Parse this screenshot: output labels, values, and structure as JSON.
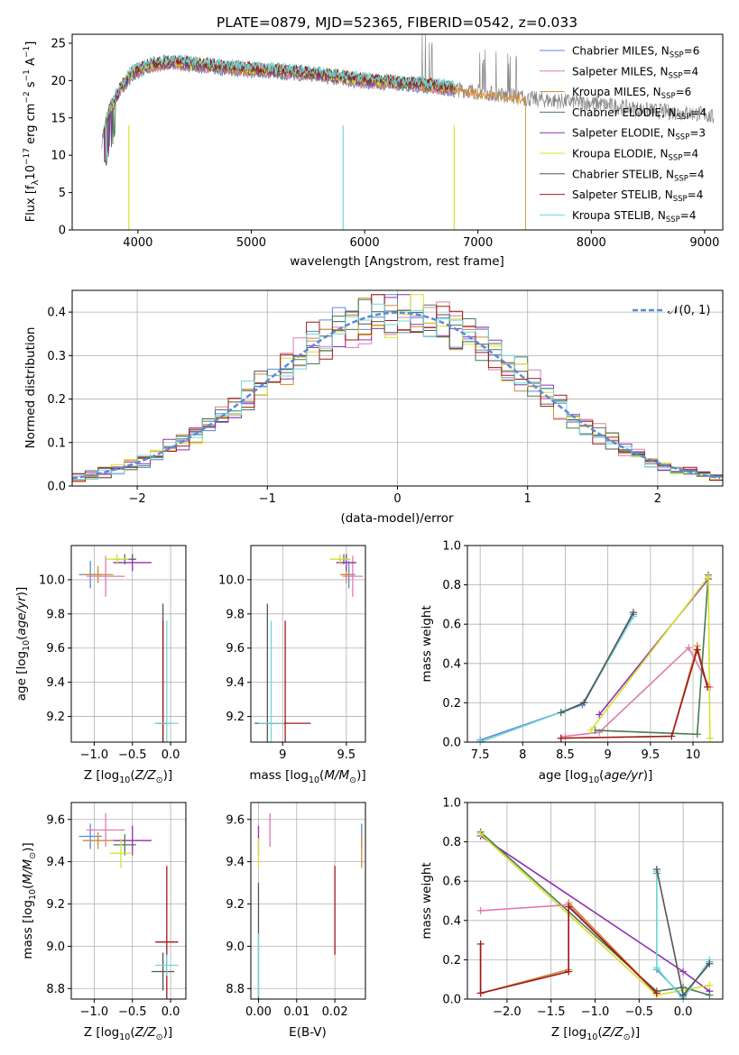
{
  "figure": {
    "title": "PLATE=0879, MJD=52365, FIBERID=0542, z=0.033"
  },
  "chart_data": [
    {
      "id": "spectrum",
      "type": "line",
      "xlabel": "wavelength [Angstrom, rest frame]",
      "ylabel": "Flux [f_λ10^-17 erg cm^-2 s^-1 A^-1]",
      "xlim": [
        3420,
        9160
      ],
      "ylim": [
        0,
        26.2
      ],
      "xticks": [
        4000,
        5000,
        6000,
        7000,
        8000,
        9000
      ],
      "yticks": [
        0,
        5,
        10,
        15,
        20,
        25
      ],
      "grid": false,
      "legend_position": "top-right",
      "series": [
        {
          "name": "Chabrier MILES, N_SSP=6",
          "color": "#5b8bd4",
          "range": [
            3700,
            6800
          ]
        },
        {
          "name": "Salpeter MILES, N_SSP=4",
          "color": "#e07ab0",
          "range": [
            3700,
            6800
          ]
        },
        {
          "name": "Kroupa MILES, N_SSP=6",
          "color": "#d08a3a",
          "range": [
            3700,
            7420
          ]
        },
        {
          "name": "Chabrier ELODIE, N_SSP=4",
          "color": "#4a7a52",
          "range": [
            3700,
            6800
          ]
        },
        {
          "name": "Salpeter ELODIE, N_SSP=3",
          "color": "#9030b0",
          "range": [
            3700,
            6800
          ]
        },
        {
          "name": "Kroupa ELODIE, N_SSP=4",
          "color": "#d8e030",
          "range": [
            3700,
            6800
          ]
        },
        {
          "name": "Chabrier STELIB, N_SSP=4",
          "color": "#555555",
          "range": [
            3700,
            6800
          ]
        },
        {
          "name": "Salpeter STELIB, N_SSP=4",
          "color": "#a01818",
          "range": [
            3700,
            6800
          ]
        },
        {
          "name": "Kroupa STELIB, N_SSP=4",
          "color": "#70d8d8",
          "range": [
            3700,
            6800
          ]
        }
      ],
      "data_color": "#888888",
      "continuum": [
        [
          3680,
          12
        ],
        [
          3750,
          16
        ],
        [
          3850,
          19
        ],
        [
          3950,
          21
        ],
        [
          4100,
          22
        ],
        [
          4300,
          22.5
        ],
        [
          4600,
          22
        ],
        [
          5000,
          21.5
        ],
        [
          5500,
          21
        ],
        [
          6000,
          20
        ],
        [
          6500,
          19.5
        ],
        [
          7000,
          18.5
        ],
        [
          7500,
          17.5
        ],
        [
          8000,
          17
        ],
        [
          8500,
          16
        ],
        [
          9000,
          15.5
        ],
        [
          9080,
          15
        ]
      ],
      "marker_lines": [
        3920,
        5810,
        6790
      ],
      "kroupa_miles_drop": 7420
    },
    {
      "id": "residuals",
      "type": "line",
      "xlabel": "(data-model)/error",
      "ylabel": "Normed distribution",
      "xlim": [
        -2.5,
        2.5
      ],
      "ylim": [
        0,
        0.45
      ],
      "xticks": [
        -2,
        -1,
        0,
        1,
        2
      ],
      "xtick_labels": [
        "−2",
        "−1",
        "0",
        "1",
        "2"
      ],
      "yticks": [
        0,
        0.1,
        0.2,
        0.3,
        0.4
      ],
      "grid": true,
      "legend_position": "top-right",
      "reference": {
        "label": "𝒩(0, 1)",
        "color": "#5b8bd4",
        "mean": 0,
        "sigma": 1
      },
      "bin_width": 0.1
    },
    {
      "id": "age-vs-Z",
      "type": "scatter",
      "xlabel": "Z [log10(Z/Z⊙)]",
      "ylabel": "age  [log10(age/yr)]",
      "xlim": [
        -1.3,
        0.2
      ],
      "ylim": [
        9.05,
        10.2
      ],
      "xticks": [
        -1.0,
        -0.5,
        0.0
      ],
      "xtick_labels": [
        "−1.0",
        "−0.5",
        "0.0"
      ],
      "yticks": [
        9.2,
        9.4,
        9.6,
        9.8,
        10.0
      ],
      "grid": true,
      "points": [
        {
          "color": "#5b8bd4",
          "x": -1.05,
          "y": 10.03,
          "ex": 0.15,
          "ey": 0.08
        },
        {
          "color": "#e07ab0",
          "x": -0.85,
          "y": 10.02,
          "ex": 0.25,
          "ey": 0.12
        },
        {
          "color": "#d08a3a",
          "x": -0.95,
          "y": 10.03,
          "ex": 0.2,
          "ey": 0.05
        },
        {
          "color": "#4a7a52",
          "x": -0.6,
          "y": 10.12,
          "ex": 0.15,
          "ey": 0.03
        },
        {
          "color": "#9030b0",
          "x": -0.5,
          "y": 10.1,
          "ex": 0.25,
          "ey": 0.05
        },
        {
          "color": "#d8e030",
          "x": -0.7,
          "y": 10.12,
          "ex": 0.15,
          "ey": 0.03
        },
        {
          "color": "#555555",
          "x": -0.1,
          "y": 9.16,
          "ex": 0.05,
          "ey": 0.7
        },
        {
          "color": "#a01818",
          "x": -0.1,
          "y": 9.16,
          "ex": 0.1,
          "ey": 0.6
        },
        {
          "color": "#70d8d8",
          "x": -0.05,
          "y": 9.16,
          "ex": 0.15,
          "ey": 0.6
        }
      ]
    },
    {
      "id": "age-vs-mass",
      "type": "scatter",
      "xlabel": "mass [log10(M/M⊙)]",
      "ylabel": "",
      "xlim": [
        8.75,
        9.65
      ],
      "ylim": [
        9.05,
        10.2
      ],
      "xticks": [
        9.0,
        9.5
      ],
      "yticks": [
        9.2,
        9.4,
        9.6,
        9.8,
        10.0
      ],
      "grid": true,
      "points": [
        {
          "color": "#5b8bd4",
          "x": 9.52,
          "y": 10.03,
          "ex": 0.05,
          "ey": 0.08
        },
        {
          "color": "#e07ab0",
          "x": 9.55,
          "y": 10.02,
          "ex": 0.08,
          "ey": 0.12
        },
        {
          "color": "#d08a3a",
          "x": 9.5,
          "y": 10.03,
          "ex": 0.05,
          "ey": 0.05
        },
        {
          "color": "#4a7a52",
          "x": 9.48,
          "y": 10.12,
          "ex": 0.05,
          "ey": 0.03
        },
        {
          "color": "#9030b0",
          "x": 9.5,
          "y": 10.1,
          "ex": 0.08,
          "ey": 0.05
        },
        {
          "color": "#d8e030",
          "x": 9.45,
          "y": 10.12,
          "ex": 0.08,
          "ey": 0.03
        },
        {
          "color": "#555555",
          "x": 8.88,
          "y": 9.16,
          "ex": 0.1,
          "ey": 0.7
        },
        {
          "color": "#a01818",
          "x": 9.02,
          "y": 9.16,
          "ex": 0.2,
          "ey": 0.6
        },
        {
          "color": "#70d8d8",
          "x": 8.91,
          "y": 9.16,
          "ex": 0.1,
          "ey": 0.6
        }
      ]
    },
    {
      "id": "weight-vs-age",
      "type": "line",
      "xlabel": "age  [log10(age/yr)]",
      "ylabel": "mass weight",
      "xlim": [
        7.35,
        10.35
      ],
      "ylim": [
        0,
        1.0
      ],
      "xticks": [
        7.5,
        8.0,
        8.5,
        9.0,
        9.5,
        10.0
      ],
      "yticks": [
        0.0,
        0.2,
        0.4,
        0.6,
        0.8,
        1.0
      ],
      "grid": true,
      "series": [
        {
          "color": "#5b8bd4",
          "x": [
            7.5,
            8.5,
            8.7,
            9.3
          ],
          "y": [
            0.01,
            0.16,
            0.19,
            0.65
          ]
        },
        {
          "color": "#70d8d8",
          "x": [
            7.5,
            8.5,
            8.72,
            9.3
          ],
          "y": [
            0.0,
            0.16,
            0.2,
            0.64
          ]
        },
        {
          "color": "#555555",
          "x": [
            8.45,
            8.72,
            9.3
          ],
          "y": [
            0.15,
            0.2,
            0.66
          ]
        },
        {
          "color": "#d08a3a",
          "x": [
            8.45,
            9.75,
            10.05,
            10.17
          ],
          "y": [
            0.02,
            0.03,
            0.49,
            0.28
          ]
        },
        {
          "color": "#e07ab0",
          "x": [
            8.5,
            8.9,
            9.95,
            10.2
          ],
          "y": [
            0.03,
            0.05,
            0.48,
            0.28
          ]
        },
        {
          "color": "#9030b0",
          "x": [
            8.9,
            10.18
          ],
          "y": [
            0.14,
            0.83
          ]
        },
        {
          "color": "#4a7a52",
          "x": [
            8.85,
            10.05,
            10.18
          ],
          "y": [
            0.06,
            0.04,
            0.85
          ]
        },
        {
          "color": "#d8e030",
          "x": [
            8.8,
            10.18,
            10.2
          ],
          "y": [
            0.06,
            0.84,
            0.02
          ]
        },
        {
          "color": "#a01818",
          "x": [
            8.45,
            9.75,
            10.05,
            10.17
          ],
          "y": [
            0.02,
            0.03,
            0.47,
            0.28
          ]
        }
      ]
    },
    {
      "id": "mass-vs-Z",
      "type": "scatter",
      "xlabel": "Z [log10(Z/Z⊙)]",
      "ylabel": "mass [log10(M/M⊙)]",
      "xlim": [
        -1.3,
        0.2
      ],
      "ylim": [
        8.75,
        9.68
      ],
      "xticks": [
        -1.0,
        -0.5,
        0.0
      ],
      "xtick_labels": [
        "−1.0",
        "−0.5",
        "0.0"
      ],
      "yticks": [
        8.8,
        9.0,
        9.2,
        9.4,
        9.6
      ],
      "grid": true,
      "points": [
        {
          "color": "#5b8bd4",
          "x": -1.05,
          "y": 9.52,
          "ex": 0.15,
          "ey": 0.06
        },
        {
          "color": "#e07ab0",
          "x": -0.85,
          "y": 9.55,
          "ex": 0.25,
          "ey": 0.08
        },
        {
          "color": "#d08a3a",
          "x": -0.95,
          "y": 9.5,
          "ex": 0.2,
          "ey": 0.04
        },
        {
          "color": "#4a7a52",
          "x": -0.6,
          "y": 9.48,
          "ex": 0.15,
          "ey": 0.05
        },
        {
          "color": "#9030b0",
          "x": -0.5,
          "y": 9.5,
          "ex": 0.25,
          "ey": 0.07
        },
        {
          "color": "#d8e030",
          "x": -0.65,
          "y": 9.44,
          "ex": 0.15,
          "ey": 0.07
        },
        {
          "color": "#555555",
          "x": -0.1,
          "y": 8.88,
          "ex": 0.15,
          "ey": 0.09
        },
        {
          "color": "#a01818",
          "x": -0.05,
          "y": 9.02,
          "ex": 0.15,
          "ey": 0.36
        },
        {
          "color": "#70d8d8",
          "x": -0.05,
          "y": 8.91,
          "ex": 0.15,
          "ey": 0.05
        }
      ]
    },
    {
      "id": "mass-vs-EBV",
      "type": "scatter",
      "xlabel": "E(B-V)",
      "ylabel": "",
      "xlim": [
        -0.002,
        0.028
      ],
      "ylim": [
        8.75,
        9.68
      ],
      "xticks": [
        0.0,
        0.01,
        0.02
      ],
      "xtick_labels": [
        "0.00",
        "0.01",
        "0.02"
      ],
      "yticks": [
        8.8,
        9.0,
        9.2,
        9.4,
        9.6
      ],
      "grid": true,
      "points": [
        {
          "color": "#9030b0",
          "x": 0.0,
          "y": 9.5,
          "ex": 0.0,
          "ey": 0.07
        },
        {
          "color": "#d8e030",
          "x": 0.0,
          "y": 9.44,
          "ex": 0.0,
          "ey": 0.07
        },
        {
          "color": "#e07ab0",
          "x": 0.003,
          "y": 9.55,
          "ex": 0.0,
          "ey": 0.08
        },
        {
          "color": "#555555",
          "x": 0.0,
          "y": 9.0,
          "ex": 0.0,
          "ey": 0.3
        },
        {
          "color": "#70d8d8",
          "x": 0.0,
          "y": 8.91,
          "ex": 0.0,
          "ey": 0.15
        },
        {
          "color": "#a01818",
          "x": 0.02,
          "y": 9.17,
          "ex": 0.0,
          "ey": 0.21
        },
        {
          "color": "#5b8bd4",
          "x": 0.027,
          "y": 9.52,
          "ex": 0.0,
          "ey": 0.06
        },
        {
          "color": "#d08a3a",
          "x": 0.027,
          "y": 9.45,
          "ex": 0.0,
          "ey": 0.08
        }
      ]
    },
    {
      "id": "weight-vs-Z",
      "type": "line",
      "xlabel": "Z [log10(Z/Z⊙)]",
      "ylabel": "mass weight",
      "xlim": [
        -2.45,
        0.45
      ],
      "ylim": [
        0,
        1.0
      ],
      "xticks": [
        -2.0,
        -1.5,
        -1.0,
        -0.5,
        0.0
      ],
      "xtick_labels": [
        "−2.0",
        "−1.5",
        "−1.0",
        "−0.5",
        "0.0"
      ],
      "yticks": [
        0.0,
        0.2,
        0.4,
        0.6,
        0.8,
        1.0
      ],
      "grid": true,
      "series": [
        {
          "color": "#9030b0",
          "x": [
            -2.3,
            0.0,
            0.3
          ],
          "y": [
            0.83,
            0.14,
            0.04
          ]
        },
        {
          "color": "#4a7a52",
          "x": [
            -2.3,
            -0.3,
            0.0,
            0.3
          ],
          "y": [
            0.85,
            0.04,
            0.06,
            0.02
          ]
        },
        {
          "color": "#d8e030",
          "x": [
            -2.3,
            -0.3,
            0.3
          ],
          "y": [
            0.84,
            0.02,
            0.07
          ]
        },
        {
          "color": "#e07ab0",
          "x": [
            -2.3,
            -1.3,
            -0.3
          ],
          "y": [
            0.45,
            0.48,
            0.03
          ]
        },
        {
          "color": "#d08a3a",
          "x": [
            -2.3,
            -2.3,
            -1.3,
            -1.3,
            -0.3
          ],
          "y": [
            0.28,
            0.03,
            0.15,
            0.49,
            0.03
          ]
        },
        {
          "color": "#5b8bd4",
          "x": [
            -0.3,
            -0.3,
            0.0,
            0.3
          ],
          "y": [
            0.64,
            0.15,
            0.01,
            0.19
          ]
        },
        {
          "color": "#70d8d8",
          "x": [
            -0.3,
            -0.3,
            0.0,
            0.3
          ],
          "y": [
            0.65,
            0.16,
            0.0,
            0.2
          ]
        },
        {
          "color": "#555555",
          "x": [
            -0.3,
            0.0,
            0.3
          ],
          "y": [
            0.66,
            0.02,
            0.18
          ]
        },
        {
          "color": "#a01818",
          "x": [
            -2.3,
            -2.3,
            -1.3,
            -1.3,
            -0.3
          ],
          "y": [
            0.28,
            0.03,
            0.14,
            0.47,
            0.03
          ]
        }
      ]
    }
  ]
}
